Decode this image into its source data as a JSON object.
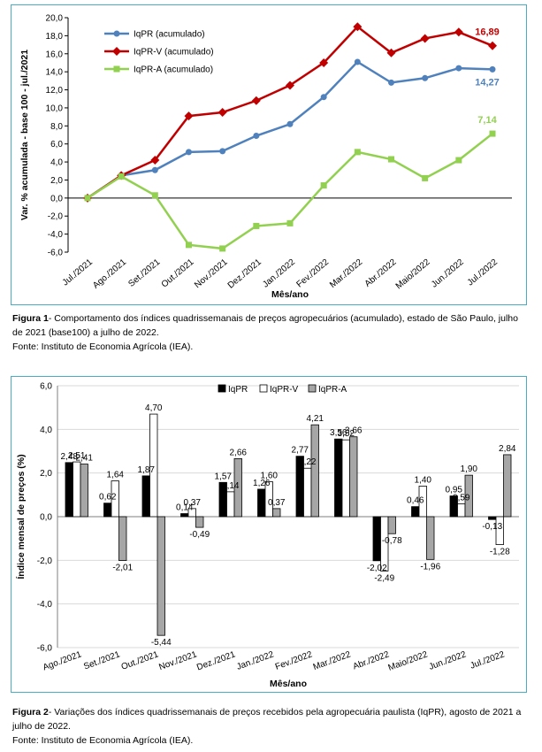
{
  "figure1": {
    "caption_label": "Figura 1",
    "caption_text": "- Comportamento dos índices quadrissemanais de preços agropecuários (acumulado), estado de São Paulo, julho de 2021 (base100) a julho de 2022.",
    "source": "Fonte: Instituto de Economia Agrícola (IEA).",
    "chart_data": {
      "type": "line",
      "categories": [
        "Jul./2021",
        "Ago./2021",
        "Set./2021",
        "Out./2021",
        "Nov./2021",
        "Dez./2021",
        "Jan./2022",
        "Fev./2022",
        "Mar./2022",
        "Abr./2022",
        "Maio/2022",
        "Jun./2022",
        "Jul./2022"
      ],
      "series": [
        {
          "name": "IqPR (acumulado)",
          "color": "#4f81bd",
          "marker": "circle",
          "values": [
            0,
            2.5,
            3.1,
            5.1,
            5.2,
            6.9,
            8.2,
            11.2,
            15.1,
            12.8,
            13.3,
            14.4,
            14.27
          ],
          "end_label": "14,27"
        },
        {
          "name": "IqPR-V (acumulado)",
          "color": "#c00000",
          "marker": "diamond",
          "values": [
            0,
            2.5,
            4.2,
            9.1,
            9.5,
            10.8,
            12.5,
            15.0,
            19.0,
            16.1,
            17.7,
            18.4,
            16.89
          ],
          "end_label": "16,89"
        },
        {
          "name": "IqPR-A (acumulado)",
          "color": "#92d050",
          "marker": "square",
          "values": [
            0,
            2.4,
            0.3,
            -5.2,
            -5.6,
            -3.1,
            -2.8,
            1.4,
            5.1,
            4.3,
            2.2,
            4.2,
            7.14
          ],
          "end_label": "7,14"
        }
      ],
      "xlabel": "Mês/ano",
      "ylabel": "Var. % acumulada - base 100 - jul./2021",
      "ylim": [
        -6,
        20
      ],
      "ytick_step": 2,
      "ytick_labels": [
        "-6,0",
        "-4,0",
        "-2,0",
        "0,0",
        "2,0",
        "4,0",
        "6,0",
        "8,0",
        "10,0",
        "12,0",
        "14,0",
        "16,0",
        "18,0",
        "20,0"
      ],
      "grid": false,
      "legend_position": "top-left"
    }
  },
  "figure2": {
    "caption_label": "Figura 2",
    "caption_text": "- Variações dos índices quadrissemanais de preços recebidos pela agropecuária paulista (IqPR), agosto de 2021 a julho de 2022.",
    "source": "Fonte: Instituto de Economia Agrícola (IEA).",
    "chart_data": {
      "type": "bar",
      "categories": [
        "Ago./2021",
        "Set./2021",
        "Out./2021",
        "Nov./2021",
        "Dez./2021",
        "Jan./2022",
        "Fev./2022",
        "Mar./2022",
        "Abr./2022",
        "Maio/2022",
        "Jun./2022",
        "Jul./2022"
      ],
      "series": [
        {
          "name": "IqPR",
          "color": "#000000",
          "values": [
            2.48,
            0.62,
            1.87,
            0.14,
            1.57,
            1.26,
            2.77,
            3.56,
            -2.02,
            0.46,
            0.95,
            -0.13
          ],
          "labels": [
            "2,48",
            "0,62",
            "1,87",
            "0,14",
            "1,57",
            "1,26",
            "2,77",
            "3,56",
            "-2,02",
            "0,46",
            "0,95",
            "-0,13"
          ]
        },
        {
          "name": "IqPR-V",
          "color": "#ffffff",
          "values": [
            2.51,
            1.64,
            4.7,
            0.37,
            1.14,
            1.6,
            2.22,
            3.52,
            -2.49,
            1.4,
            0.59,
            -1.28
          ],
          "labels": [
            "2,51",
            "1,64",
            "4,70",
            "0,37",
            "1,14",
            "1,60",
            "2,22",
            "3,52",
            "-2,49",
            "1,40",
            "0,59",
            "-1,28"
          ]
        },
        {
          "name": "IqPR-A",
          "color": "#a6a6a6",
          "values": [
            2.41,
            -2.01,
            -5.44,
            -0.49,
            2.66,
            0.37,
            4.21,
            3.66,
            -0.78,
            -1.96,
            1.9,
            2.84
          ],
          "labels": [
            "2,41",
            "-2,01",
            "-5,44",
            "-0,49",
            "2,66",
            "0,37",
            "4,21",
            "3,66",
            "-0,78",
            "-1,96",
            "1,90",
            "2,84"
          ]
        }
      ],
      "xlabel": "Mês/ano",
      "ylabel": "Índice mensal de preços (%)",
      "ylim": [
        -6,
        6
      ],
      "ytick_step": 2,
      "ytick_labels": [
        "-6,0",
        "-4,0",
        "-2,0",
        "0,0",
        "2,0",
        "4,0",
        "6,0"
      ],
      "grid": true,
      "legend_position": "top-center"
    }
  }
}
